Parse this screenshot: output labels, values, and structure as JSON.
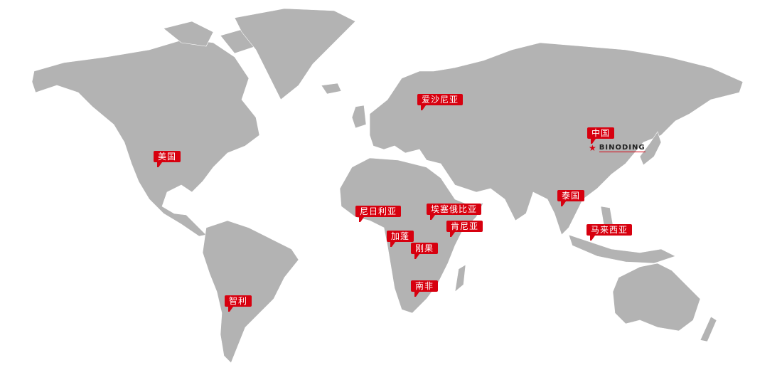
{
  "colors": {
    "land": "#b3b3b3",
    "marker": "#d7000f",
    "background": "#ffffff"
  },
  "markers": [
    {
      "label": "美国"
    },
    {
      "label": "爱沙尼亚"
    },
    {
      "label": "中国"
    },
    {
      "label": "尼日利亚"
    },
    {
      "label": "埃塞俄比亚"
    },
    {
      "label": "肯尼亚"
    },
    {
      "label": "加蓬"
    },
    {
      "label": "刚果"
    },
    {
      "label": "南非"
    },
    {
      "label": "泰国"
    },
    {
      "label": "马来西亚"
    },
    {
      "label": "智利"
    }
  ],
  "logo": {
    "icon": "star-icon",
    "text": "BINODING"
  }
}
